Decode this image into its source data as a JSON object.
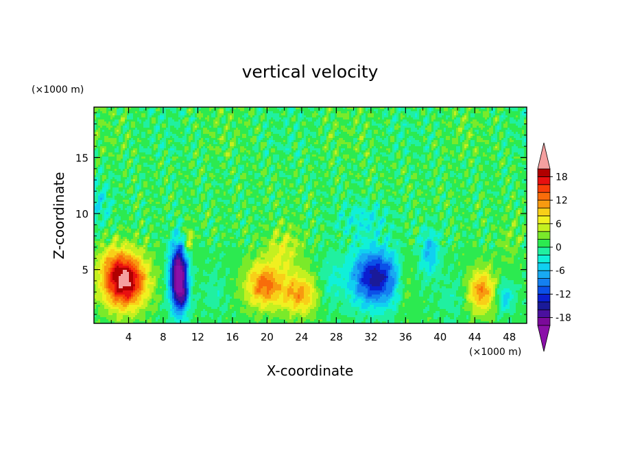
{
  "chart_data": {
    "type": "heatmap",
    "title": "vertical velocity",
    "xlabel": "X-coordinate",
    "ylabel": "Z-coordinate",
    "x_unit_label": "(×1000 m)",
    "y_unit_label": "(×1000 m)",
    "xlim": [
      0,
      50
    ],
    "ylim": [
      0.2,
      19.5
    ],
    "x_ticks": [
      "4",
      "8",
      "12",
      "16",
      "20",
      "24",
      "28",
      "32",
      "36",
      "40",
      "44",
      "48"
    ],
    "y_ticks": [
      "5",
      "10",
      "15"
    ],
    "x_tick_values": [
      4,
      8,
      12,
      16,
      20,
      24,
      28,
      32,
      36,
      40,
      44,
      48
    ],
    "y_tick_values": [
      5,
      10,
      15
    ],
    "grid": false,
    "legend_placement": "right",
    "colorbar": {
      "labels": [
        "18",
        "12",
        "6",
        "0",
        "-6",
        "-12",
        "-18"
      ],
      "label_values": [
        18,
        12,
        6,
        0,
        -6,
        -12,
        -18
      ],
      "min": -20,
      "max": 20,
      "step": 2,
      "colors": [
        "#7b0a9a",
        "#4a109e",
        "#1a1a99",
        "#0b1fd0",
        "#0b50e8",
        "#1480f0",
        "#18aaf2",
        "#10d0f0",
        "#10f0d8",
        "#20f0a0",
        "#2cea50",
        "#7aea2a",
        "#c4f020",
        "#f0f020",
        "#f8cf18",
        "#f89a10",
        "#f86c0a",
        "#f83e08",
        "#e81010",
        "#b00000"
      ],
      "under_color": "#8a10a8",
      "over_color": "#f4a0a0"
    },
    "features": [
      {
        "x": 3.5,
        "z": 4.0,
        "w": 21,
        "sx": 2.5,
        "sz": 2.4
      },
      {
        "x": 2.0,
        "z": 6.0,
        "w": 3,
        "sx": 1.5,
        "sz": 1.5
      },
      {
        "x": 9.8,
        "z": 4.3,
        "w": -25,
        "sx": 1.0,
        "sz": 2.9
      },
      {
        "x": 10.4,
        "z": 2.6,
        "w": -5,
        "sx": 0.6,
        "sz": 1.0
      },
      {
        "x": 10.9,
        "z": 7.6,
        "w": 6,
        "sx": 0.6,
        "sz": 1.2
      },
      {
        "x": 14.0,
        "z": 3.0,
        "w": -2,
        "sx": 1.4,
        "sz": 2.0
      },
      {
        "x": 19.7,
        "z": 3.6,
        "w": 12,
        "sx": 2.2,
        "sz": 2.0
      },
      {
        "x": 23.8,
        "z": 2.8,
        "w": 10,
        "sx": 2.0,
        "sz": 1.8
      },
      {
        "x": 22.0,
        "z": 6.8,
        "w": 5,
        "sx": 2.0,
        "sz": 2.0
      },
      {
        "x": 27.2,
        "z": 3.8,
        "w": -3,
        "sx": 1.3,
        "sz": 2.2
      },
      {
        "x": 32.5,
        "z": 4.3,
        "w": -16,
        "sx": 2.8,
        "sz": 2.5
      },
      {
        "x": 31.0,
        "z": 9.5,
        "w": -4,
        "sx": 3.0,
        "sz": 1.5
      },
      {
        "x": 36.0,
        "z": 4.0,
        "w": 4,
        "sx": 1.0,
        "sz": 2.5
      },
      {
        "x": 38.8,
        "z": 6.5,
        "w": -7,
        "sx": 1.1,
        "sz": 2.0
      },
      {
        "x": 41.5,
        "z": 2.5,
        "w": -2,
        "sx": 1.5,
        "sz": 2.0
      },
      {
        "x": 44.8,
        "z": 3.1,
        "w": 11,
        "sx": 1.6,
        "sz": 1.9
      },
      {
        "x": 47.5,
        "z": 2.5,
        "w": -6,
        "sx": 1.0,
        "sz": 1.3
      },
      {
        "x": 48.0,
        "z": 7.5,
        "w": 2,
        "sx": 1.2,
        "sz": 2.0
      },
      {
        "x": 0.5,
        "z": 11.0,
        "w": -4,
        "sx": 1.5,
        "sz": 2.0
      }
    ]
  }
}
